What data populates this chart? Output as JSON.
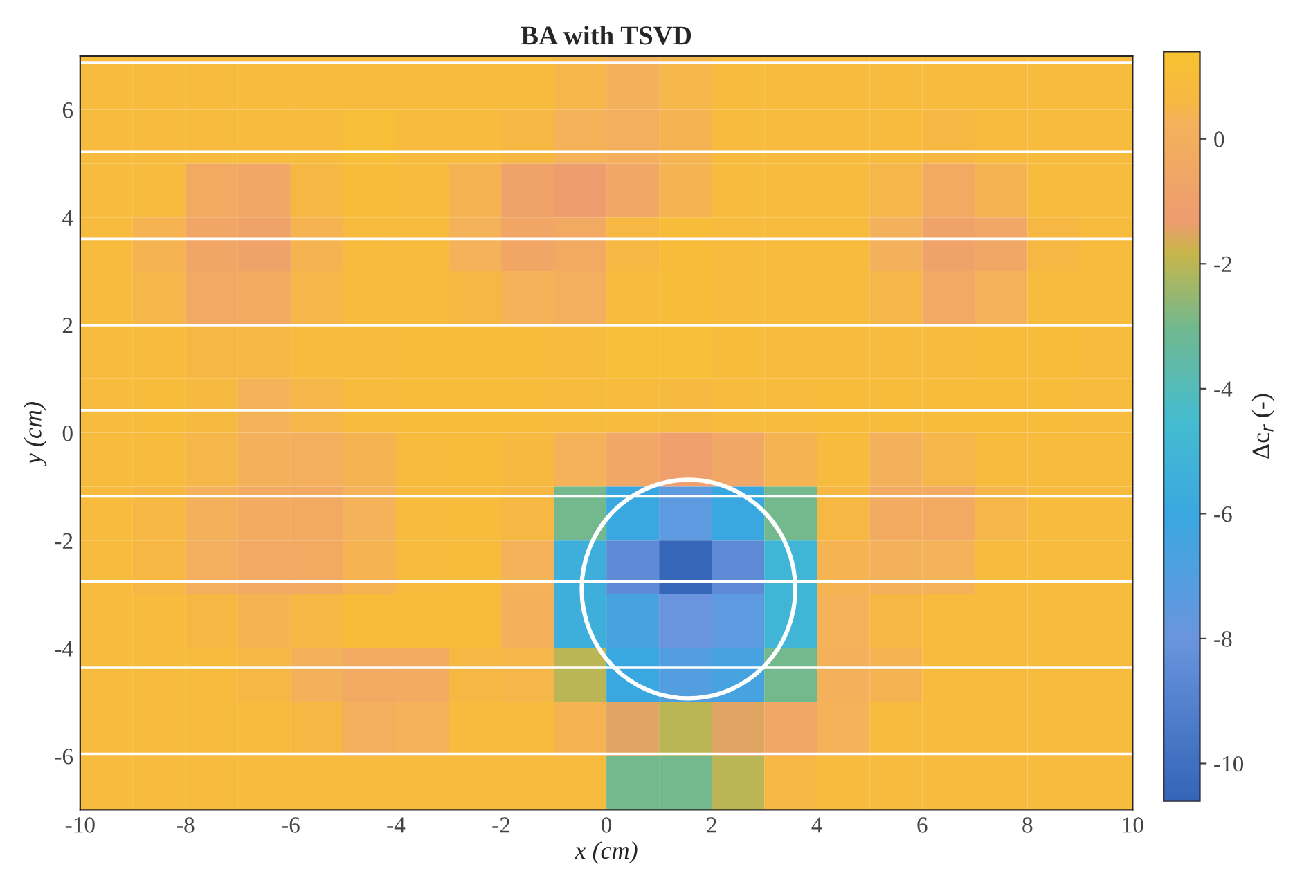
{
  "chart_data": {
    "type": "heatmap",
    "title": "BA with TSVD",
    "xlabel": "x (cm)",
    "ylabel": "y (cm)",
    "clabel": "Δc$_{r}$ (-)",
    "x": [
      -9.5,
      -8.5,
      -7.5,
      -6.5,
      -5.5,
      -4.5,
      -3.5,
      -2.5,
      -1.5,
      -0.5,
      0.5,
      1.5,
      2.5,
      3.5,
      4.5,
      5.5,
      6.5,
      7.5,
      8.5,
      9.5
    ],
    "y": [
      6.5,
      5.5,
      4.5,
      3.5,
      2.5,
      1.5,
      0.5,
      -0.5,
      -1.5,
      -2.5,
      -3.5,
      -4.5,
      -5.5,
      -6.5
    ],
    "cells": [
      [
        0.8,
        0.8,
        0.8,
        0.8,
        0.8,
        0.8,
        0.8,
        0.8,
        0.8,
        0.5,
        0.2,
        0.5,
        0.8,
        0.8,
        0.8,
        0.8,
        0.8,
        0.8,
        0.8,
        0.8
      ],
      [
        0.8,
        0.8,
        0.8,
        0.8,
        0.8,
        1.1,
        0.8,
        0.8,
        0.6,
        0.3,
        0.0,
        0.4,
        0.8,
        0.8,
        0.8,
        0.8,
        0.6,
        0.8,
        0.8,
        0.8
      ],
      [
        0.8,
        0.8,
        -0.3,
        -0.5,
        0.6,
        1.0,
        0.8,
        0.4,
        -0.8,
        -1.2,
        -0.5,
        0.4,
        0.8,
        0.8,
        0.8,
        0.5,
        -0.3,
        0.4,
        0.8,
        0.8
      ],
      [
        0.8,
        0.4,
        -0.6,
        -0.8,
        0.4,
        0.8,
        0.8,
        0.3,
        -0.6,
        -0.3,
        0.6,
        1.0,
        0.8,
        0.8,
        0.8,
        0.2,
        -0.8,
        -0.5,
        0.6,
        0.8
      ],
      [
        0.8,
        0.5,
        -0.4,
        -0.3,
        0.5,
        0.8,
        0.8,
        0.6,
        0.3,
        0.0,
        0.8,
        1.0,
        0.8,
        0.8,
        0.8,
        0.5,
        -0.4,
        0.3,
        0.8,
        0.8
      ],
      [
        0.8,
        0.8,
        0.6,
        0.6,
        0.8,
        0.8,
        0.9,
        1.0,
        0.9,
        0.8,
        1.1,
        1.1,
        0.9,
        0.8,
        0.8,
        0.8,
        0.8,
        0.9,
        1.0,
        0.8
      ],
      [
        0.8,
        0.9,
        0.7,
        0.3,
        0.5,
        0.8,
        1.0,
        1.0,
        0.9,
        0.8,
        0.8,
        0.7,
        0.8,
        0.8,
        0.9,
        0.9,
        0.9,
        1.0,
        0.9,
        0.8
      ],
      [
        0.8,
        0.8,
        0.5,
        0.2,
        0.0,
        0.4,
        0.8,
        0.9,
        0.7,
        0.3,
        -0.5,
        -1.0,
        -0.5,
        0.4,
        0.8,
        0.2,
        0.5,
        0.8,
        0.8,
        0.8
      ],
      [
        0.8,
        0.6,
        0.2,
        -0.2,
        -0.3,
        0.3,
        0.8,
        0.9,
        0.6,
        -3.0,
        -6.0,
        -7.5,
        -6.0,
        -3.0,
        0.6,
        -0.2,
        -0.3,
        0.5,
        0.8,
        0.8
      ],
      [
        0.8,
        0.6,
        0.0,
        -0.4,
        -0.3,
        0.4,
        0.8,
        0.9,
        0.3,
        -5.5,
        -8.5,
        -10.5,
        -8.5,
        -5.0,
        0.4,
        0.2,
        0.3,
        0.8,
        0.8,
        0.8
      ],
      [
        0.8,
        0.8,
        0.6,
        0.4,
        0.6,
        1.0,
        1.0,
        0.9,
        0.2,
        -5.5,
        -6.5,
        -8.0,
        -7.5,
        -5.0,
        0.3,
        0.6,
        0.8,
        0.8,
        0.8,
        0.8
      ],
      [
        0.8,
        0.8,
        0.8,
        0.6,
        0.2,
        -0.3,
        -0.2,
        0.6,
        0.5,
        -2.0,
        -6.0,
        -7.0,
        -6.5,
        -3.0,
        0.2,
        0.4,
        0.8,
        0.8,
        0.8,
        0.8
      ],
      [
        0.8,
        0.8,
        0.8,
        0.8,
        0.6,
        0.0,
        0.3,
        0.8,
        0.8,
        0.4,
        -1.5,
        -2.0,
        -1.5,
        -0.5,
        0.3,
        0.8,
        0.8,
        0.8,
        0.8,
        0.8
      ],
      [
        0.8,
        0.8,
        0.8,
        0.8,
        0.8,
        0.8,
        0.8,
        0.8,
        0.8,
        0.8,
        -3.0,
        -3.0,
        -2.0,
        0.6,
        0.8,
        0.8,
        0.8,
        0.8,
        0.8,
        0.8
      ]
    ],
    "xlim": [
      -10,
      10
    ],
    "ylim": [
      -7,
      7
    ],
    "clim": [
      -10.6,
      1.4
    ],
    "xticks": [
      -10,
      -8,
      -6,
      -4,
      -2,
      0,
      2,
      4,
      6,
      8,
      10
    ],
    "yticks": [
      -6,
      -4,
      -2,
      0,
      2,
      4,
      6
    ],
    "cticks": [
      -10,
      -8,
      -6,
      -4,
      -2,
      0
    ],
    "ref_lines": [
      {
        "axis": "y",
        "value": 6.88,
        "color": "#ffffff"
      },
      {
        "axis": "y",
        "value": 5.22,
        "color": "#ffffff"
      },
      {
        "axis": "y",
        "value": 3.6,
        "color": "#ffffff"
      },
      {
        "axis": "y",
        "value": 2.0,
        "color": "#ffffff"
      },
      {
        "axis": "y",
        "value": 0.42,
        "color": "#ffffff"
      },
      {
        "axis": "y",
        "value": -1.18,
        "color": "#ffffff"
      },
      {
        "axis": "y",
        "value": -2.76,
        "color": "#ffffff"
      },
      {
        "axis": "y",
        "value": -4.36,
        "color": "#ffffff"
      },
      {
        "axis": "y",
        "value": -5.96,
        "color": "#ffffff"
      }
    ],
    "grid": false
  }
}
